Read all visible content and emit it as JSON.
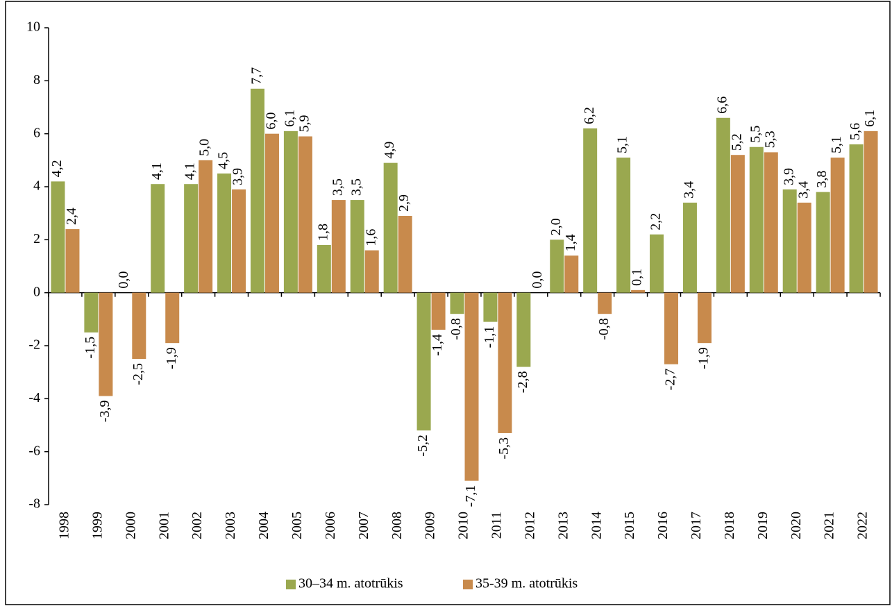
{
  "chart_data": {
    "type": "bar",
    "categories": [
      "1998",
      "1999",
      "2000",
      "2001",
      "2002",
      "2003",
      "2004",
      "2005",
      "2006",
      "2007",
      "2008",
      "2009",
      "2010",
      "2011",
      "2012",
      "2013",
      "2014",
      "2015",
      "2016",
      "2017",
      "2018",
      "2019",
      "2020",
      "2021",
      "2022"
    ],
    "series": [
      {
        "name": "30–34 m. atotrūkis",
        "color": "#9aa84f",
        "values": [
          4.2,
          -1.5,
          0.0,
          4.1,
          4.1,
          4.5,
          7.7,
          6.1,
          1.8,
          3.5,
          4.9,
          -5.2,
          -0.8,
          -1.1,
          -2.8,
          2.0,
          6.2,
          5.1,
          2.2,
          3.4,
          6.6,
          5.5,
          3.9,
          3.8,
          5.6
        ],
        "value_labels": [
          "4,2",
          "-1,5",
          "0,0",
          "4,1",
          "4,1",
          "4,5",
          "7,7",
          "6,1",
          "1,8",
          "3,5",
          "4,9",
          "-5,2",
          "-0,8",
          "-1,1",
          "-2,8",
          "2,0",
          "6,2",
          "5,1",
          "2,2",
          "3,4",
          "6,6",
          "5,5",
          "3,9",
          "3,8",
          "5,6"
        ]
      },
      {
        "name": "35-39 m. atotrūkis",
        "color": "#c88a4c",
        "values": [
          2.4,
          -3.9,
          -2.5,
          -1.9,
          5.0,
          3.9,
          6.0,
          5.9,
          3.5,
          1.6,
          2.9,
          -1.4,
          -7.1,
          -5.3,
          0.0,
          1.4,
          -0.8,
          0.1,
          -2.7,
          -1.9,
          5.2,
          5.3,
          3.4,
          5.1,
          6.1
        ],
        "value_labels": [
          "2,4",
          "-3,9",
          "-2,5",
          "-1,9",
          "5,0",
          "3,9",
          "6,0",
          "5,9",
          "3,5",
          "1,6",
          "2,9",
          "-1,4",
          "-7,1",
          "-5,3",
          "0,0",
          "1,4",
          "-0,8",
          "0,1",
          "-2,7",
          "-1,9",
          "5,2",
          "5,3",
          "3,4",
          "5,1",
          "6,1"
        ]
      }
    ],
    "ylim": [
      -8,
      10
    ],
    "yticks": [
      -8,
      -6,
      -4,
      -2,
      0,
      2,
      4,
      6,
      8,
      10
    ],
    "legend": "bottom"
  }
}
